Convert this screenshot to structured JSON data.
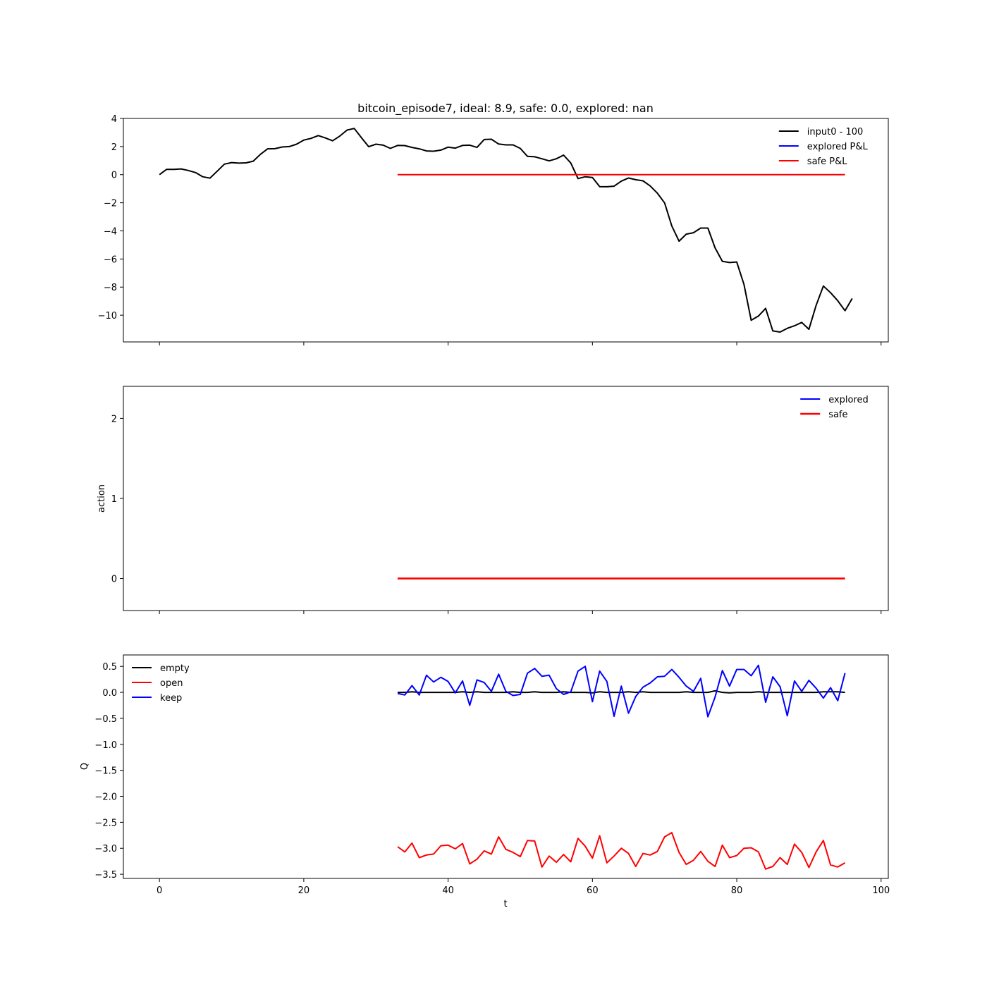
{
  "chart_data": [
    {
      "type": "line",
      "title": "bitcoin_episode7, ideal: 8.9, safe: 0.0, explored: nan",
      "xlabel": "",
      "ylabel": "",
      "xlim": [
        -5,
        101
      ],
      "ylim": [
        -11.9,
        4
      ],
      "yticks": [
        4,
        2,
        0,
        -2,
        -4,
        -6,
        -8,
        -10
      ],
      "ytick_labels": [
        "4",
        "2",
        "0",
        "−2",
        "−4",
        "−6",
        "−8",
        "−10"
      ],
      "xticks": [
        0,
        20,
        40,
        60,
        80,
        100
      ],
      "show_xtick_labels": false,
      "legend_position": "top-right",
      "series": [
        {
          "name": "input0 - 100",
          "color": "#000000",
          "x_start": 0,
          "values": [
            0.0,
            0.38,
            0.38,
            0.41,
            0.3,
            0.15,
            -0.15,
            -0.25,
            0.25,
            0.75,
            0.86,
            0.82,
            0.84,
            0.96,
            1.45,
            1.84,
            1.85,
            1.97,
            2.0,
            2.17,
            2.46,
            2.58,
            2.78,
            2.61,
            2.41,
            2.75,
            3.17,
            3.29,
            2.62,
            1.99,
            2.17,
            2.1,
            1.87,
            2.08,
            2.07,
            1.94,
            1.84,
            1.69,
            1.67,
            1.75,
            1.96,
            1.89,
            2.08,
            2.1,
            1.94,
            2.5,
            2.52,
            2.18,
            2.12,
            2.12,
            1.87,
            1.3,
            1.27,
            1.13,
            0.98,
            1.13,
            1.39,
            0.83,
            -0.28,
            -0.15,
            -0.2,
            -0.85,
            -0.86,
            -0.82,
            -0.46,
            -0.24,
            -0.36,
            -0.44,
            -0.8,
            -1.32,
            -2.01,
            -3.65,
            -4.73,
            -4.23,
            -4.13,
            -3.8,
            -3.8,
            -5.21,
            -6.16,
            -6.25,
            -6.21,
            -7.81,
            -10.36,
            -10.06,
            -9.51,
            -11.12,
            -11.2,
            -10.93,
            -10.75,
            -10.51,
            -11.0,
            -9.3,
            -7.92,
            -8.4,
            -8.97,
            -9.68,
            -8.81
          ]
        },
        {
          "name": "explored P&L",
          "color": "#0000ff",
          "x_start": 33,
          "values": []
        },
        {
          "name": "safe P&L",
          "color": "#ff0000",
          "x_start": 33,
          "values": [
            0,
            0
          ]
        }
      ]
    },
    {
      "type": "line",
      "title": "",
      "xlabel": "",
      "ylabel": "action",
      "xlim": [
        -5,
        101
      ],
      "ylim": [
        -0.4,
        2.4
      ],
      "yticks": [
        2,
        1,
        0
      ],
      "ytick_labels": [
        "2",
        "1",
        "0"
      ],
      "xticks": [
        0,
        20,
        40,
        60,
        80,
        100
      ],
      "show_xtick_labels": false,
      "legend_position": "top-right",
      "series": [
        {
          "name": "explored",
          "color": "#0000ff",
          "x_start": 33,
          "values": []
        },
        {
          "name": "safe",
          "color": "#ff0000",
          "x_start": 33,
          "values": [
            0,
            0
          ]
        }
      ]
    },
    {
      "type": "line",
      "title": "",
      "xlabel": "t",
      "ylabel": "Q",
      "xlim": [
        -5,
        101
      ],
      "ylim": [
        -3.58,
        0.72
      ],
      "yticks": [
        0.5,
        0.0,
        -0.5,
        -1.0,
        -1.5,
        -2.0,
        -2.5,
        -3.0,
        -3.5
      ],
      "ytick_labels": [
        "0.5",
        "0.0",
        "−0.5",
        "−1.0",
        "−1.5",
        "−2.0",
        "−2.5",
        "−3.0",
        "−3.5"
      ],
      "xticks": [
        0,
        20,
        40,
        60,
        80,
        100
      ],
      "xtick_labels": [
        "0",
        "20",
        "40",
        "60",
        "80",
        "100"
      ],
      "show_xtick_labels": true,
      "legend_position": "top-left",
      "series": [
        {
          "name": "empty",
          "color": "#000000",
          "x_start": 33,
          "values": [
            0.0,
            0.0,
            0.01,
            0.0,
            0.0,
            0.0,
            0.0,
            0.0,
            0.0,
            0.01,
            0.0,
            0.01,
            0.0,
            0.0,
            0.0,
            0.0,
            0.01,
            0.0,
            0.0,
            0.01,
            0.0,
            0.0,
            0.0,
            0.01,
            0.0,
            0.0,
            0.0,
            -0.01,
            0.01,
            0.0,
            0.0,
            0.0,
            0.01,
            0.0,
            0.01,
            0.0,
            0.0,
            0.0,
            0.0,
            0.0,
            0.01,
            0.0,
            0.0,
            0.0,
            0.03,
            0.0,
            -0.01,
            0.0,
            0.0,
            0.0,
            0.01,
            0.0,
            0.0,
            0.0,
            0.0,
            0.0,
            0.0,
            0.0,
            0.0,
            0.01,
            0.01,
            0.01,
            0.0
          ]
        },
        {
          "name": "open",
          "color": "#ff0000",
          "x_start": 33,
          "values": [
            -2.97,
            -3.07,
            -2.9,
            -3.18,
            -3.13,
            -3.11,
            -2.95,
            -2.94,
            -3.01,
            -2.91,
            -3.3,
            -3.21,
            -3.05,
            -3.11,
            -2.78,
            -3.02,
            -3.08,
            -3.16,
            -2.85,
            -2.86,
            -3.36,
            -3.15,
            -3.27,
            -3.12,
            -3.26,
            -2.81,
            -2.96,
            -3.19,
            -2.76,
            -3.28,
            -3.15,
            -3.0,
            -3.1,
            -3.35,
            -3.1,
            -3.13,
            -3.06,
            -2.78,
            -2.7,
            -3.08,
            -3.31,
            -3.23,
            -3.06,
            -3.25,
            -3.35,
            -2.94,
            -3.18,
            -3.14,
            -3.0,
            -2.99,
            -3.07,
            -3.4,
            -3.35,
            -3.18,
            -3.31,
            -2.92,
            -3.08,
            -3.37,
            -3.07,
            -2.85,
            -3.32,
            -3.36,
            -3.28
          ]
        },
        {
          "name": "keep",
          "color": "#0000ff",
          "x_start": 33,
          "values": [
            -0.02,
            -0.05,
            0.13,
            -0.05,
            0.33,
            0.2,
            0.29,
            0.21,
            -0.01,
            0.22,
            -0.25,
            0.24,
            0.19,
            0.02,
            0.35,
            0.02,
            -0.06,
            -0.04,
            0.37,
            0.46,
            0.31,
            0.33,
            0.07,
            -0.04,
            0.01,
            0.41,
            0.5,
            -0.18,
            0.41,
            0.21,
            -0.46,
            0.12,
            -0.4,
            -0.08,
            0.1,
            0.18,
            0.3,
            0.31,
            0.44,
            0.29,
            0.12,
            0.02,
            0.27,
            -0.47,
            -0.09,
            0.42,
            0.12,
            0.44,
            0.44,
            0.32,
            0.52,
            -0.19,
            0.3,
            0.11,
            -0.45,
            0.22,
            0.02,
            0.23,
            0.08,
            -0.11,
            0.09,
            -0.16,
            0.37
          ]
        }
      ]
    }
  ]
}
